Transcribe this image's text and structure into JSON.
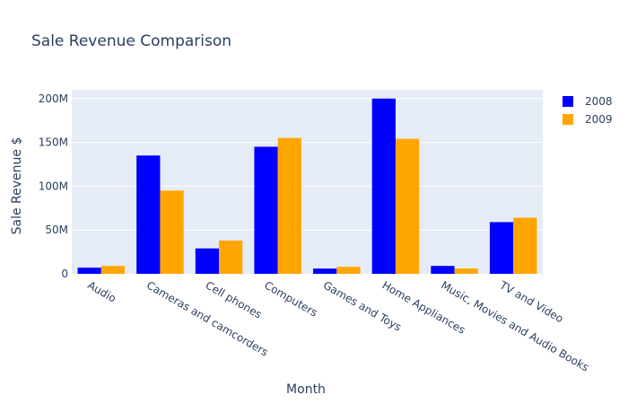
{
  "chart_data": {
    "type": "bar",
    "title": "Sale Revenue Comparison",
    "xlabel": "Month",
    "ylabel": "Sale Revenue $",
    "categories": [
      "Audio",
      "Cameras and camcorders",
      "Cell phones",
      "Computers",
      "Games and Toys",
      "Home Appliances",
      "Music, Movies and Audio Books",
      "TV and Video"
    ],
    "series": [
      {
        "name": "2008",
        "color": "#0000ff",
        "values": [
          7000000,
          135000000,
          29000000,
          145000000,
          6000000,
          200000000,
          9000000,
          59000000
        ]
      },
      {
        "name": "2009",
        "color": "#ffa500",
        "values": [
          9000000,
          95000000,
          38000000,
          155000000,
          8000000,
          154000000,
          6000000,
          64000000
        ]
      }
    ],
    "ylim": [
      0,
      210000000
    ],
    "yticks": [
      0,
      50000000,
      100000000,
      150000000,
      200000000
    ],
    "ytick_labels": [
      "0",
      "50M",
      "100M",
      "150M",
      "200M"
    ],
    "grid": true,
    "legend_position": "top-right",
    "plot_background": "#e5ecf6"
  }
}
